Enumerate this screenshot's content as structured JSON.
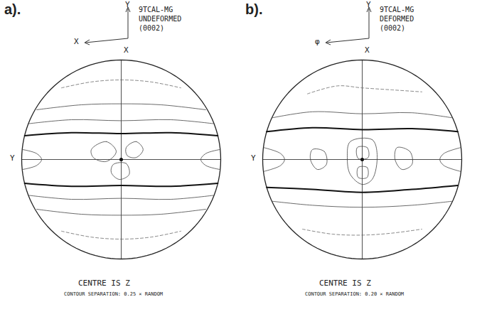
{
  "chart_data": [
    {
      "type": "contour",
      "title": "a).",
      "header": [
        "9TCAL-MG",
        "UNDEFORMED",
        "(0002)"
      ],
      "triad": {
        "up": "Y",
        "left": "X"
      },
      "circle_labels": {
        "top": "X",
        "left": "Y"
      },
      "footer": [
        "CENTRE IS Z",
        "CONTOUR SEPARATION: 0.25 × RANDOM"
      ],
      "contours": [
        {
          "line_style": "dashed",
          "points": [
            [
              -0.6,
              0.72
            ],
            [
              -0.3,
              0.78
            ],
            [
              0,
              0.8
            ],
            [
              0.3,
              0.78
            ],
            [
              0.6,
              0.72
            ]
          ]
        },
        {
          "line_style": "solid",
          "points": [
            [
              -0.85,
              0.5
            ],
            [
              -0.4,
              0.55
            ],
            [
              0,
              0.56
            ],
            [
              0.4,
              0.55
            ],
            [
              0.85,
              0.5
            ]
          ]
        },
        {
          "line_style": "solid",
          "points": [
            [
              -0.93,
              0.36
            ],
            [
              -0.5,
              0.4
            ],
            [
              0,
              0.39
            ],
            [
              0.5,
              0.4
            ],
            [
              0.93,
              0.36
            ]
          ]
        },
        {
          "line_style": "bold",
          "points": [
            [
              -0.97,
              0.24
            ],
            [
              -0.5,
              0.27
            ],
            [
              0,
              0.26
            ],
            [
              0.5,
              0.27
            ],
            [
              0.97,
              0.24
            ]
          ]
        },
        {
          "line_style": "bold",
          "points": [
            [
              -0.97,
              -0.24
            ],
            [
              -0.5,
              -0.27
            ],
            [
              0,
              -0.26
            ],
            [
              0.5,
              -0.27
            ],
            [
              0.97,
              -0.24
            ]
          ]
        },
        {
          "line_style": "solid",
          "points": [
            [
              -0.93,
              -0.36
            ],
            [
              -0.5,
              -0.4
            ],
            [
              0,
              -0.39
            ],
            [
              0.5,
              -0.4
            ],
            [
              0.93,
              -0.36
            ]
          ]
        },
        {
          "line_style": "solid",
          "points": [
            [
              -0.85,
              -0.5
            ],
            [
              -0.4,
              -0.55
            ],
            [
              0,
              -0.56
            ],
            [
              0.4,
              -0.55
            ],
            [
              0.85,
              -0.5
            ]
          ]
        },
        {
          "line_style": "dashed",
          "points": [
            [
              -0.6,
              -0.72
            ],
            [
              -0.3,
              -0.78
            ],
            [
              0,
              -0.8
            ],
            [
              0.3,
              -0.78
            ],
            [
              0.6,
              -0.72
            ]
          ]
        },
        {
          "line_style": "solid",
          "closed": true,
          "points": [
            [
              -0.3,
              0.1
            ],
            [
              -0.15,
              0.18
            ],
            [
              -0.05,
              0.08
            ],
            [
              -0.15,
              -0.02
            ],
            [
              -0.28,
              0.02
            ]
          ]
        },
        {
          "line_style": "solid",
          "closed": true,
          "points": [
            [
              0.05,
              0.12
            ],
            [
              0.15,
              0.18
            ],
            [
              0.22,
              0.1
            ],
            [
              0.15,
              0.02
            ],
            [
              0.06,
              0.04
            ]
          ]
        },
        {
          "line_style": "solid",
          "closed": true,
          "points": [
            [
              -0.08,
              -0.05
            ],
            [
              0.05,
              -0.04
            ],
            [
              0.08,
              -0.15
            ],
            [
              -0.02,
              -0.2
            ],
            [
              -0.1,
              -0.13
            ]
          ]
        },
        {
          "line_style": "solid",
          "points": [
            [
              -0.99,
              0.1
            ],
            [
              -0.85,
              0.06
            ],
            [
              -0.8,
              0
            ],
            [
              -0.85,
              -0.06
            ],
            [
              -0.99,
              -0.1
            ]
          ]
        },
        {
          "line_style": "solid",
          "points": [
            [
              0.99,
              0.1
            ],
            [
              0.85,
              0.06
            ],
            [
              0.8,
              0
            ],
            [
              0.85,
              -0.06
            ],
            [
              0.99,
              -0.1
            ]
          ]
        }
      ]
    },
    {
      "type": "contour",
      "title": "b).",
      "header": [
        "9TCAL-MG",
        "DEFORMED",
        "(0002)"
      ],
      "triad": {
        "up": "Y",
        "left": "φ"
      },
      "circle_labels": {
        "top": "X",
        "left": "Y"
      },
      "footer": [
        "CENTRE IS Z",
        "CONTOUR SEPARATION: 0.20 × RANDOM"
      ],
      "contours": [
        {
          "line_style": "dashed",
          "points": [
            [
              -0.55,
              0.66
            ],
            [
              -0.25,
              0.74
            ],
            [
              0,
              0.72
            ],
            [
              0.3,
              0.7
            ],
            [
              0.6,
              0.68
            ]
          ]
        },
        {
          "line_style": "solid",
          "points": [
            [
              -0.9,
              0.42
            ],
            [
              -0.5,
              0.48
            ],
            [
              0,
              0.46
            ],
            [
              0.5,
              0.47
            ],
            [
              0.9,
              0.42
            ]
          ]
        },
        {
          "line_style": "bold",
          "points": [
            [
              -0.96,
              0.28
            ],
            [
              -0.5,
              0.32
            ],
            [
              0,
              0.3
            ],
            [
              0.5,
              0.31
            ],
            [
              0.96,
              0.28
            ]
          ]
        },
        {
          "line_style": "bold",
          "points": [
            [
              -0.96,
              -0.28
            ],
            [
              -0.5,
              -0.3
            ],
            [
              0,
              -0.33
            ],
            [
              0.5,
              -0.3
            ],
            [
              0.96,
              -0.26
            ]
          ]
        },
        {
          "line_style": "solid",
          "points": [
            [
              -0.9,
              -0.42
            ],
            [
              -0.5,
              -0.46
            ],
            [
              0,
              -0.48
            ],
            [
              0.5,
              -0.46
            ],
            [
              0.9,
              -0.42
            ]
          ]
        },
        {
          "line_style": "dashed",
          "points": [
            [
              -0.6,
              -0.7
            ],
            [
              -0.3,
              -0.75
            ],
            [
              0,
              -0.76
            ],
            [
              0.3,
              -0.74
            ],
            [
              0.6,
              -0.7
            ]
          ]
        },
        {
          "line_style": "solid",
          "closed": true,
          "points": [
            [
              -0.12,
              0.18
            ],
            [
              0.1,
              0.2
            ],
            [
              0.15,
              0.05
            ],
            [
              0.1,
              -0.2
            ],
            [
              0,
              -0.25
            ],
            [
              -0.12,
              -0.15
            ],
            [
              -0.15,
              0.02
            ]
          ]
        },
        {
          "line_style": "solid",
          "closed": true,
          "points": [
            [
              -0.05,
              0.12
            ],
            [
              0.05,
              0.12
            ],
            [
              0.06,
              0.02
            ],
            [
              -0.04,
              0.01
            ]
          ]
        },
        {
          "line_style": "solid",
          "closed": true,
          "points": [
            [
              -0.04,
              -0.08
            ],
            [
              0.05,
              -0.08
            ],
            [
              0.05,
              -0.18
            ],
            [
              -0.04,
              -0.18
            ]
          ]
        },
        {
          "line_style": "solid",
          "closed": true,
          "points": [
            [
              -0.5,
              0.1
            ],
            [
              -0.38,
              0.08
            ],
            [
              -0.36,
              -0.05
            ],
            [
              -0.45,
              -0.1
            ],
            [
              -0.52,
              0
            ]
          ]
        },
        {
          "line_style": "solid",
          "closed": true,
          "points": [
            [
              0.35,
              0.12
            ],
            [
              0.48,
              0.08
            ],
            [
              0.5,
              -0.05
            ],
            [
              0.4,
              -0.1
            ],
            [
              0.33,
              0
            ]
          ]
        },
        {
          "line_style": "solid",
          "points": [
            [
              -0.99,
              0.12
            ],
            [
              -0.82,
              0.06
            ],
            [
              -0.78,
              0
            ],
            [
              -0.82,
              -0.06
            ],
            [
              -0.99,
              -0.12
            ]
          ]
        },
        {
          "line_style": "solid",
          "points": [
            [
              0.99,
              0.12
            ],
            [
              0.82,
              0.06
            ],
            [
              0.78,
              0
            ],
            [
              0.82,
              -0.06
            ],
            [
              0.99,
              -0.12
            ]
          ]
        }
      ]
    }
  ]
}
